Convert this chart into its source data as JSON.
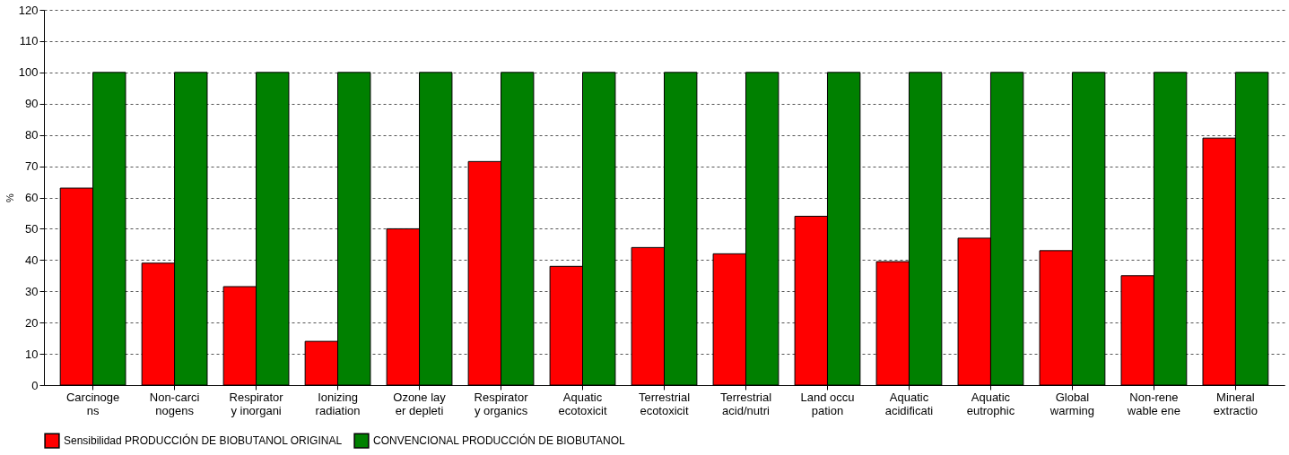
{
  "chart_data": {
    "type": "bar",
    "ylabel": "%",
    "categories": [
      "Carcinoge\nns",
      "Non-carci\nnogens",
      "Respirator\ny inorgani",
      "Ionizing\nradiation",
      "Ozone lay\ner depleti",
      "Respirator\ny organics",
      "Aquatic\necotoxicit",
      "Terrestrial\necotoxicit",
      "Terrestrial\nacid/nutri",
      "Land occu\npation",
      "Aquatic\nacidificati",
      "Aquatic\neutrophic",
      "Global\nwarming",
      "Non-rene\nwable ene",
      "Mineral\nextractio"
    ],
    "series": [
      {
        "name": "Sensibilidad PRODUCCIÓN DE BIOBUTANOL ORIGINAL",
        "color": "#ff0000",
        "values": [
          63,
          39,
          31.5,
          14,
          50,
          71.5,
          38,
          44,
          42,
          54,
          39.5,
          47,
          43,
          35,
          79
        ]
      },
      {
        "name": "CONVENCIONAL PRODUCCIÓN DE BIOBUTANOL",
        "color": "#008000",
        "values": [
          100,
          100,
          100,
          100,
          100,
          100,
          100,
          100,
          100,
          100,
          100,
          100,
          100,
          100,
          100
        ]
      }
    ],
    "ylim": [
      0,
      120
    ],
    "yticks": [
      0,
      10,
      20,
      30,
      40,
      50,
      60,
      70,
      80,
      90,
      100,
      110,
      120
    ],
    "grid": "y",
    "legend": "bottom"
  }
}
